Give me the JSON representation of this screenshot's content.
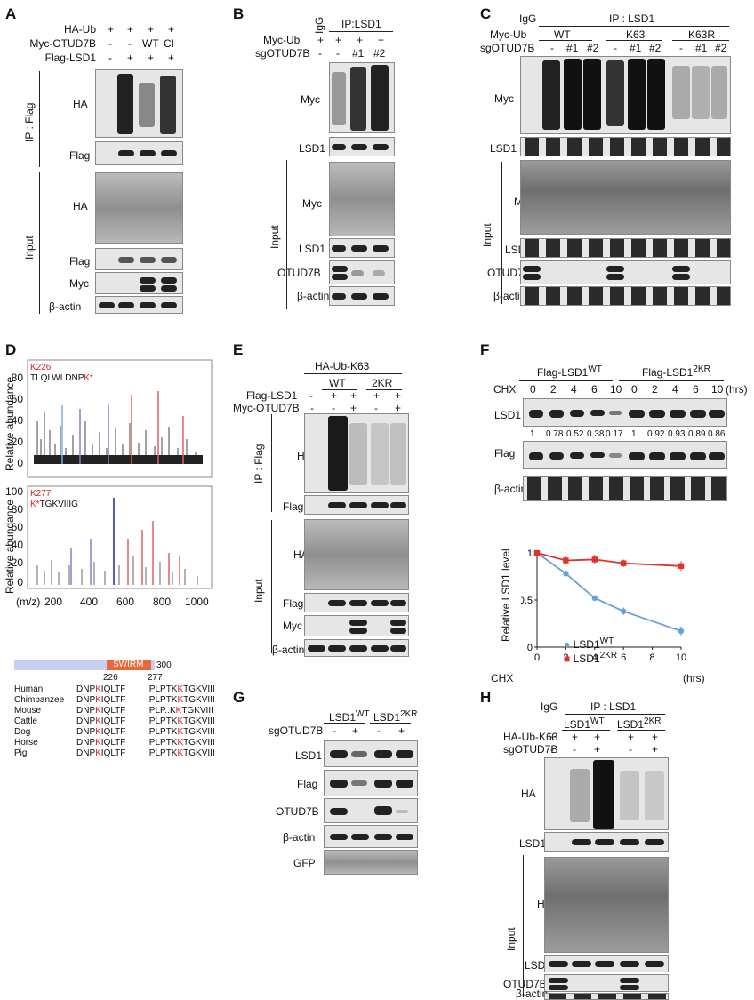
{
  "panels": {
    "A": "A",
    "B": "B",
    "C": "C",
    "D": "D",
    "E": "E",
    "F": "F",
    "G": "G",
    "H": "H"
  },
  "panelA": {
    "rows": [
      "HA-Ub",
      "Myc-OTUD7B",
      "Flag-LSD1"
    ],
    "cols": [
      [
        "+",
        "+",
        "+",
        "+"
      ],
      [
        "-",
        "-",
        "WT",
        "CI"
      ],
      [
        "-",
        "+",
        "+",
        "+"
      ]
    ],
    "ip": "IP : Flag",
    "input": "Input",
    "blots": [
      "HA",
      "Flag",
      "HA",
      "Flag",
      "Myc",
      "β-actin"
    ]
  },
  "panelB": {
    "igg": "IgG",
    "ip": "IP:LSD1",
    "rows": [
      "Myc-Ub",
      "sgOTUD7B"
    ],
    "cols": [
      [
        "+",
        "+",
        "+",
        "+"
      ],
      [
        "-",
        "-",
        "#1",
        "#2"
      ]
    ],
    "input": "Input",
    "blots": [
      "Myc",
      "LSD1",
      "Myc",
      "LSD1",
      "OTUD7B",
      "β-actin"
    ]
  },
  "panelC": {
    "igg": "IgG",
    "ip": "IP : LSD1",
    "rows": [
      "Myc-Ub",
      "sgOTUD7B"
    ],
    "groups": [
      "WT",
      "K63",
      "K63R"
    ],
    "cols": [
      "-",
      "-",
      "#1",
      "#2",
      "-",
      "#1",
      "#2",
      "-",
      "#1",
      "#2"
    ],
    "input": "Input",
    "blots": [
      "Myc",
      "LSD1",
      "Myc",
      "LSD1",
      "OTUD7B",
      "β-actin"
    ]
  },
  "panelD": {
    "ylabel": "Relative abundance",
    "spec1": {
      "site": "K226",
      "seq_pre": "TLQLWLDNP",
      "seq_k": "K*",
      "ticks": [
        "80",
        "60",
        "40",
        "20",
        "0"
      ]
    },
    "spec2": {
      "site": "K277",
      "seq_k": "K*",
      "seq_post": "TGKVIIIG",
      "ticks": [
        "100",
        "80",
        "60",
        "40",
        "20",
        "0"
      ]
    },
    "xlabel": "(m/z)",
    "xticks": [
      "200",
      "400",
      "600",
      "800",
      "1000"
    ],
    "domain": {
      "label": "SWIRM",
      "end": "300",
      "s1": "226",
      "s2": "277"
    },
    "species": [
      {
        "name": "Human",
        "a": "DNP",
        "ak": "K",
        "a2": "IQLTF",
        "b": "PLPTK",
        "bk": "K",
        "b2": "TGKVIII"
      },
      {
        "name": "Chimpanzee",
        "a": "DNP",
        "ak": "K",
        "a2": "IQLTF",
        "b": "PLPTK",
        "bk": "K",
        "b2": "TGKVIII"
      },
      {
        "name": "Mouse",
        "a": "DNP",
        "ak": "K",
        "a2": "IQLTF",
        "b": "PLP..K",
        "bk": "K",
        "b2": "TGKVIII"
      },
      {
        "name": "Cattle",
        "a": "DNP",
        "ak": "K",
        "a2": "IQLTF",
        "b": "PLPTK",
        "bk": "K",
        "b2": "TGKVIII"
      },
      {
        "name": "Dog",
        "a": "DNP",
        "ak": "K",
        "a2": "IQLTF",
        "b": "PLPTK",
        "bk": "K",
        "b2": "TGKVIII"
      },
      {
        "name": "Horse",
        "a": "DNP",
        "ak": "K",
        "a2": "IQLTF",
        "b": "PLPTK",
        "bk": "K",
        "b2": "TGKVIII"
      },
      {
        "name": "Pig",
        "a": "DNP",
        "ak": "K",
        "a2": "IQLTF",
        "b": "PLPTK",
        "bk": "K",
        "b2": "TGKVIII"
      }
    ]
  },
  "panelE": {
    "top": "HA-Ub-K63",
    "groups": [
      "WT",
      "2KR"
    ],
    "rows": [
      "Flag-LSD1",
      "Myc-OTUD7B"
    ],
    "cols": [
      [
        "-",
        "+",
        "+",
        "+",
        "+"
      ],
      [
        "-",
        "-",
        "+",
        "-",
        "+"
      ]
    ],
    "ip": "IP : Flag",
    "input": "Input",
    "blots": [
      "HA",
      "Flag",
      "HA",
      "Flag",
      "Myc",
      "β-actin"
    ]
  },
  "panelF": {
    "g1": "Flag-LSD1",
    "g1sup": "WT",
    "g2": "Flag-LSD1",
    "g2sup": "2KR",
    "chx": "CHX",
    "times": [
      "0",
      "2",
      "4",
      "6",
      "10",
      "0",
      "2",
      "4",
      "6",
      "10"
    ],
    "hrs": "(hrs)",
    "quant": [
      "1",
      "0.78",
      "0.52",
      "0.38",
      "0.17",
      "1",
      "0.92",
      "0.93",
      "0.89",
      "0.86"
    ],
    "blots": [
      "LSD1",
      "Flag",
      "β-actin"
    ]
  },
  "panelG": {
    "g1": "LSD1",
    "g1sup": "WT",
    "g2": "LSD1",
    "g2sup": "2KR",
    "row": "sgOTUD7B",
    "cols": [
      "-",
      "+",
      "-",
      "+"
    ],
    "blots": [
      "LSD1",
      "Flag",
      "OTUD7B",
      "β-actin",
      "GFP"
    ]
  },
  "panelH": {
    "igg": "IgG",
    "ip": "IP : LSD1",
    "g1": "LSD1",
    "g1sup": "WT",
    "g2": "LSD1",
    "g2sup": "2KR",
    "rows": [
      "HA-Ub-K63",
      "sgOTUD7B"
    ],
    "cols": [
      [
        "+",
        "+",
        "+",
        "+",
        "+"
      ],
      [
        "-",
        "-",
        "+",
        "-",
        "+"
      ]
    ],
    "input": "Input",
    "blots": [
      "HA",
      "LSD1",
      "HA",
      "LSD1",
      "OTUD7B",
      "β-actin"
    ]
  },
  "chart_data": {
    "type": "line",
    "x": [
      0,
      2,
      4,
      6,
      10
    ],
    "xlabel": "CHX",
    "xunit": "(hrs)",
    "ylabel": "Relative LSD1 level",
    "xlim": [
      0,
      10
    ],
    "ylim": [
      0,
      1
    ],
    "xticks": [
      "0",
      "2",
      "4",
      "6",
      "8",
      "10"
    ],
    "yticks": [
      "0",
      "0.5",
      "1"
    ],
    "series": [
      {
        "name": "LSD1",
        "sup": "WT",
        "color": "#6a9fd8",
        "values": [
          1,
          0.78,
          0.52,
          0.38,
          0.17
        ],
        "err": [
          0,
          0.03,
          0.03,
          0.04,
          0.05
        ]
      },
      {
        "name": "LSD1",
        "sup": "2KR",
        "color": "#e03030",
        "values": [
          1,
          0.92,
          0.93,
          0.89,
          0.86
        ],
        "err": [
          0,
          0.04,
          0.05,
          0.04,
          0.05
        ]
      }
    ]
  }
}
